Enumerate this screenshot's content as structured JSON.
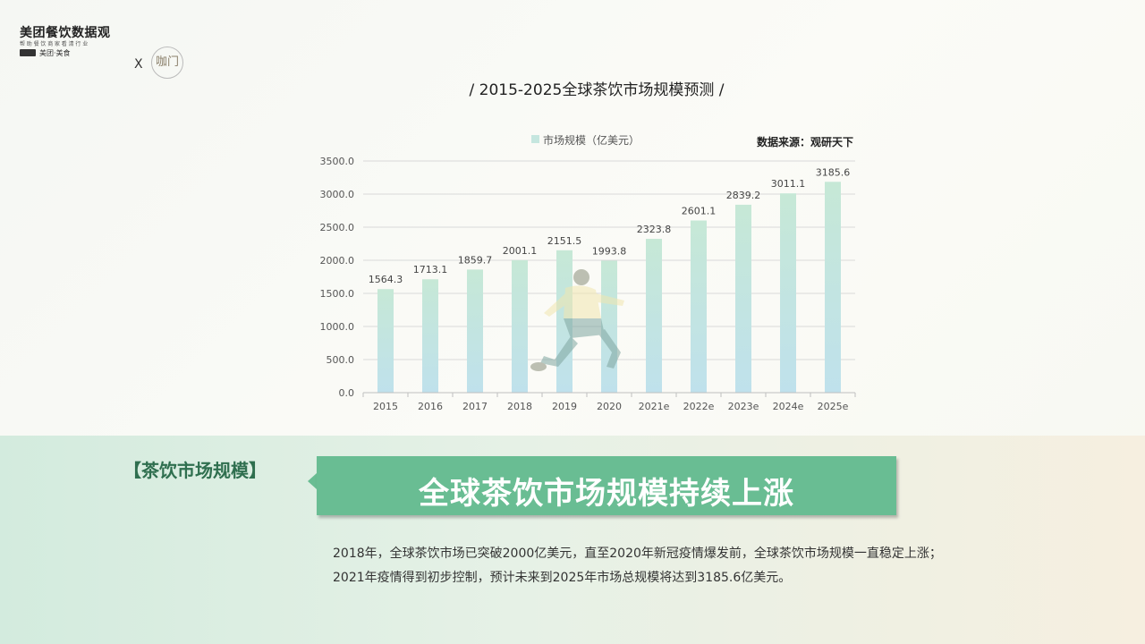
{
  "logo": {
    "main": "美团餐饮数据观",
    "sub": "帮助餐饮商家看清行业",
    "brand": "美团·美食",
    "x": "X",
    "partner": "咖门"
  },
  "title": "/ 2015-2025全球茶饮市场规模预测 /",
  "source": "数据来源：观研天下",
  "chart_data": {
    "type": "bar",
    "categories": [
      "2015",
      "2016",
      "2017",
      "2018",
      "2019",
      "2020",
      "2021e",
      "2022e",
      "2023e",
      "2024e",
      "2025e"
    ],
    "series": [
      {
        "name": "市场规模（亿美元）",
        "values": [
          1564.3,
          1713.1,
          1859.7,
          2001.1,
          2151.5,
          1993.8,
          2323.8,
          2601.1,
          2839.2,
          3011.1,
          3185.6
        ]
      }
    ],
    "value_labels": [
      "1564.3",
      "1713.1",
      "1859.7",
      "2001.1",
      "2151.5",
      "1993.8",
      "2323.8",
      "2601.1",
      "2839.2",
      "3011.1",
      "3185.6"
    ],
    "ylim": [
      0,
      3500
    ],
    "yticks": [
      "0.0",
      "500.0",
      "1000.0",
      "1500.0",
      "2000.0",
      "2500.0",
      "3000.0",
      "3500.0"
    ],
    "grid": true,
    "legend": "top",
    "bar_colors": {
      "top": "#c6e8d6",
      "bottom": "#bfe1ec"
    }
  },
  "section": {
    "label": "【茶饮市场规模】",
    "headline": "全球茶饮市场规模持续上涨",
    "desc_line1": "2018年，全球茶饮市场已突破2000亿美元，直至2020年新冠疫情爆发前，全球茶饮市场规模一直稳定上涨；",
    "desc_line2": "2021年疫情得到初步控制，预计未来到2025年市场总规模将达到3185.6亿美元。"
  }
}
